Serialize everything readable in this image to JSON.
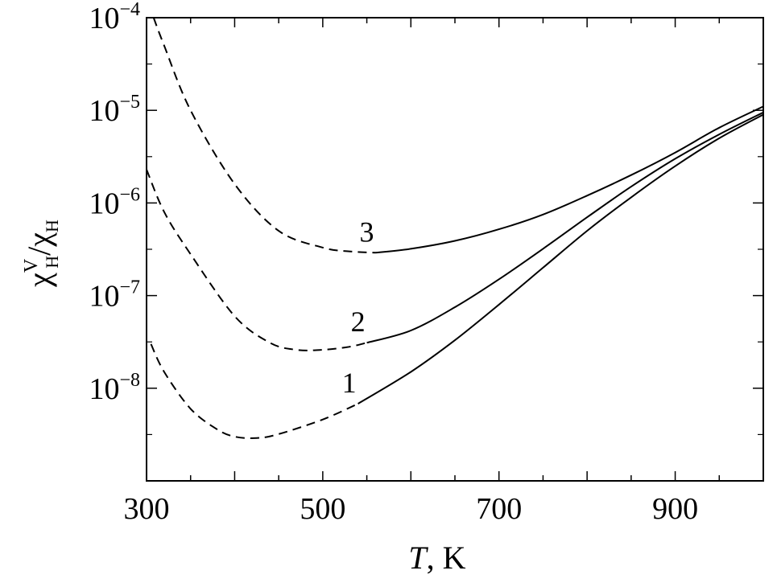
{
  "chart_data": {
    "type": "line",
    "xlabel": {
      "var": "T",
      "unit": ", K"
    },
    "ylabel": {
      "sym": "χ",
      "sup": "V",
      "sub": "H",
      "div": "/"
    },
    "xlim": [
      300,
      1000
    ],
    "ylim": [
      1e-09,
      0.0001
    ],
    "yscale": "log",
    "x_ticks": [
      300,
      500,
      700,
      900
    ],
    "y_ticks": [
      {
        "value": 0.0001,
        "base": "10",
        "exp": "−4"
      },
      {
        "value": 1e-05,
        "base": "10",
        "exp": "−5"
      },
      {
        "value": 1e-06,
        "base": "10",
        "exp": "−6"
      },
      {
        "value": 1e-07,
        "base": "10",
        "exp": "−7"
      },
      {
        "value": 1e-08,
        "base": "10",
        "exp": "−8"
      }
    ],
    "grid": false,
    "colors": {
      "line": "#000000"
    },
    "series": [
      {
        "label": "1",
        "dashed": {
          "x": [
            305,
            320,
            350,
            380,
            400,
            425,
            450,
            500,
            540
          ],
          "y": [
            3e-08,
            1.5e-08,
            6e-09,
            3.6e-09,
            3e-09,
            2.9e-09,
            3.2e-09,
            4.6e-09,
            6.8e-09
          ]
        },
        "solid": {
          "x": [
            540,
            600,
            650,
            700,
            750,
            800,
            850,
            900,
            950,
            1000
          ],
          "y": [
            6.8e-09,
            1.5e-08,
            3.3e-08,
            8e-08,
            2e-07,
            5e-07,
            1.15e-06,
            2.5e-06,
            5e-06,
            9e-06
          ]
        }
      },
      {
        "label": "2",
        "dashed": {
          "x": [
            300,
            320,
            350,
            400,
            440,
            470,
            500,
            530,
            550
          ],
          "y": [
            2.3e-06,
            8e-07,
            2.8e-07,
            6e-08,
            3.1e-08,
            2.6e-08,
            2.6e-08,
            2.8e-08,
            3.1e-08
          ]
        },
        "solid": {
          "x": [
            550,
            600,
            650,
            700,
            750,
            800,
            850,
            900,
            950,
            1000
          ],
          "y": [
            3.1e-08,
            4.2e-08,
            7.5e-08,
            1.5e-07,
            3.2e-07,
            7e-07,
            1.5e-06,
            3e-06,
            5.5e-06,
            9.5e-06
          ]
        }
      },
      {
        "label": "3",
        "dashed": {
          "x": [
            308,
            320,
            350,
            400,
            450,
            500,
            530,
            560
          ],
          "y": [
            0.0001,
            5e-05,
            1e-05,
            1.6e-06,
            5e-07,
            3.3e-07,
            3e-07,
            2.9e-07
          ]
        },
        "solid": {
          "x": [
            560,
            600,
            650,
            700,
            750,
            800,
            850,
            900,
            950,
            1000
          ],
          "y": [
            2.9e-07,
            3.2e-07,
            3.9e-07,
            5.2e-07,
            7.5e-07,
            1.2e-06,
            2e-06,
            3.5e-06,
            6.5e-06,
            1.1e-05
          ]
        }
      }
    ]
  }
}
